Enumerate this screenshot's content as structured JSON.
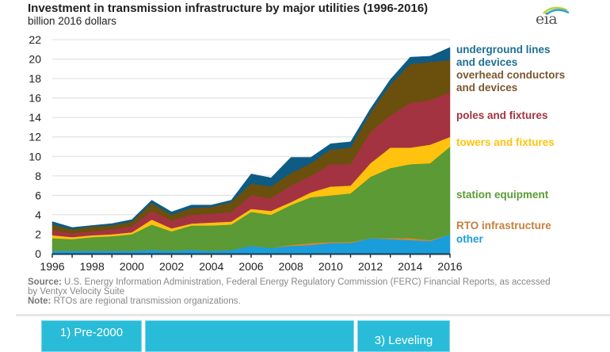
{
  "header": {
    "title": "Investment in transmission infrastructure by major utilities (1996-2016)",
    "subtitle": "billion 2016 dollars",
    "logo_text": "eia"
  },
  "footer": {
    "source_label": "Source:",
    "source_text": " U.S. Energy Information Administration, Federal Energy Regulatory Commission (FERC) Financial Reports, as accessed by Ventyx Velocity Suite",
    "note_label": "Note:",
    "note_text": " RTOs are regional transmission organizations."
  },
  "tabs": [
    {
      "label": "1) Pre-2000"
    },
    {
      "label": ""
    },
    {
      "label": "3) Leveling"
    }
  ],
  "chart_data": {
    "type": "area",
    "stacked": true,
    "title": "Investment in transmission infrastructure by major utilities (1996-2016)",
    "ylabel": "billion 2016 dollars",
    "xlabel": "",
    "x": [
      1996,
      1997,
      1998,
      1999,
      2000,
      2001,
      2002,
      2003,
      2004,
      2005,
      2006,
      2007,
      2008,
      2009,
      2010,
      2011,
      2012,
      2013,
      2014,
      2015,
      2016
    ],
    "xticks": [
      1996,
      1998,
      2000,
      2002,
      2004,
      2006,
      2008,
      2010,
      2012,
      2014,
      2016
    ],
    "xlim": [
      1996,
      2016
    ],
    "ylim": [
      0,
      22
    ],
    "yticks": [
      0,
      2,
      4,
      6,
      8,
      10,
      12,
      14,
      16,
      18,
      20,
      22
    ],
    "grid": true,
    "legend_position": "right (inline labels)",
    "series": [
      {
        "name": "other",
        "label_lines": [
          "other"
        ],
        "color": "#1a9ddb",
        "label_color": "#1a9ddb",
        "values": [
          0.3,
          0.3,
          0.3,
          0.3,
          0.3,
          0.4,
          0.3,
          0.4,
          0.3,
          0.4,
          0.8,
          0.6,
          0.8,
          0.9,
          1.1,
          1.1,
          1.6,
          1.5,
          1.4,
          1.3,
          2.0
        ]
      },
      {
        "name": "RTO infrastructure",
        "label_lines": [
          "RTO infrastructure"
        ],
        "color": "#d8862e",
        "label_color": "#c5803e",
        "values": [
          0.0,
          0.0,
          0.0,
          0.0,
          0.0,
          0.0,
          0.0,
          0.0,
          0.0,
          0.0,
          0.0,
          0.0,
          0.1,
          0.2,
          0.1,
          0.1,
          0.0,
          0.1,
          0.2,
          0.1,
          0.0
        ]
      },
      {
        "name": "station equipment",
        "label_lines": [
          "station equipment"
        ],
        "color": "#5b9a34",
        "label_color": "#5b9a34",
        "values": [
          1.3,
          1.2,
          1.4,
          1.5,
          1.7,
          2.6,
          2.0,
          2.5,
          2.6,
          2.6,
          3.5,
          3.4,
          4.1,
          4.7,
          4.8,
          5.0,
          6.3,
          7.2,
          7.6,
          7.9,
          9.0
        ]
      },
      {
        "name": "towers and fixtures",
        "label_lines": [
          "towers and fixtures"
        ],
        "color": "#ffc20e",
        "label_color": "#ffc20e",
        "values": [
          0.3,
          0.2,
          0.2,
          0.2,
          0.2,
          0.5,
          0.3,
          0.2,
          0.3,
          0.3,
          0.3,
          0.4,
          0.3,
          0.5,
          0.9,
          0.8,
          1.4,
          2.1,
          1.7,
          1.9,
          1.0
        ]
      },
      {
        "name": "poles and fixtures",
        "label_lines": [
          "poles and fixtures"
        ],
        "color": "#a33340",
        "label_color": "#a33340",
        "values": [
          0.5,
          0.4,
          0.4,
          0.5,
          0.6,
          0.9,
          0.8,
          0.9,
          0.9,
          1.0,
          1.4,
          1.3,
          1.7,
          1.7,
          2.3,
          2.2,
          3.2,
          3.3,
          4.6,
          4.6,
          4.6
        ]
      },
      {
        "name": "overhead conductors and devices",
        "label_lines": [
          "overhead conductors",
          "and devices"
        ],
        "color": "#6b4f0d",
        "label_color": "#7a5830",
        "values": [
          0.6,
          0.4,
          0.5,
          0.4,
          0.5,
          0.8,
          0.6,
          0.7,
          0.7,
          1.0,
          1.2,
          1.2,
          1.3,
          1.3,
          1.5,
          1.7,
          2.0,
          3.2,
          4.0,
          3.9,
          3.3
        ]
      },
      {
        "name": "underground lines and devices",
        "label_lines": [
          "underground lines",
          "and devices"
        ],
        "color": "#0e5b84",
        "label_color": "#1f6f93",
        "values": [
          0.3,
          0.2,
          0.1,
          0.2,
          0.2,
          0.3,
          0.3,
          0.3,
          0.2,
          0.2,
          1.0,
          0.9,
          1.6,
          0.6,
          0.6,
          0.6,
          0.4,
          0.5,
          0.7,
          0.6,
          1.3
        ]
      }
    ]
  }
}
